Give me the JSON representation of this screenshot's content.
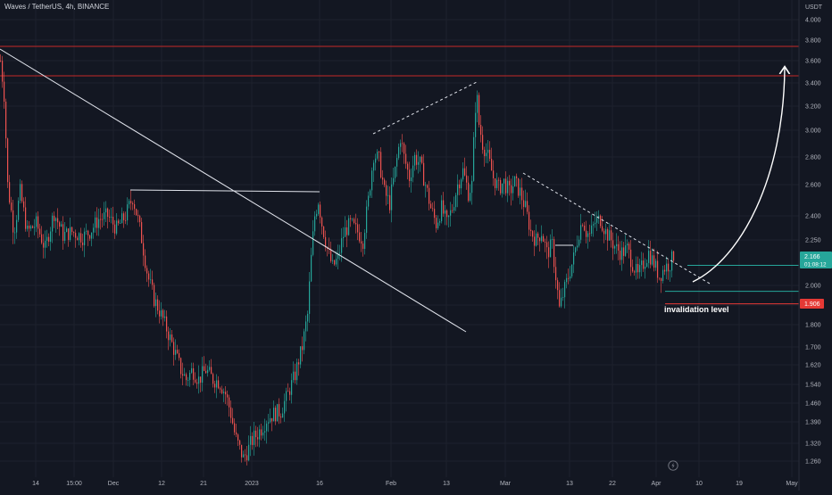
{
  "header": {
    "symbol_line": "Waves / TetherUS, 4h, BINANCE",
    "currency": "USDT"
  },
  "chart_data": {
    "type": "candlestick",
    "title": "Waves / TetherUS, 4h, BINANCE",
    "ylabel": "USDT",
    "ylim": [
      1.22,
      4.1
    ],
    "y_ticks": [
      "4.000",
      "3.800",
      "3.600",
      "3.400",
      "3.200",
      "3.000",
      "2.800",
      "2.600",
      "2.400",
      "2.250",
      "2.000",
      "1.900",
      "1.800",
      "1.700",
      "1.620",
      "1.540",
      "1.460",
      "1.390",
      "1.320",
      "1.260"
    ],
    "x_ticks": [
      "14",
      "15:00",
      "Dec",
      "12",
      "21",
      "2023",
      "16",
      "Feb",
      "13",
      "Mar",
      "13",
      "22",
      "Apr",
      "10",
      "19",
      "May"
    ],
    "grid": true,
    "current_price": {
      "value": "2.166",
      "countdown": "01:08:12"
    },
    "invalidation": {
      "value": "1.906",
      "label": "invalidation level"
    },
    "horizontal_levels": [
      3.74,
      3.47,
      2.11,
      1.97,
      1.906
    ],
    "price_path": [
      [
        0,
        3.6
      ],
      [
        4,
        3.3
      ],
      [
        8,
        2.6
      ],
      [
        15,
        2.3
      ],
      [
        22,
        2.55
      ],
      [
        30,
        2.3
      ],
      [
        40,
        2.35
      ],
      [
        50,
        2.2
      ],
      [
        60,
        2.42
      ],
      [
        70,
        2.28
      ],
      [
        80,
        2.3
      ],
      [
        92,
        2.27
      ],
      [
        100,
        2.3
      ],
      [
        110,
        2.38
      ],
      [
        120,
        2.4
      ],
      [
        130,
        2.32
      ],
      [
        140,
        2.4
      ],
      [
        148,
        2.52
      ],
      [
        155,
        2.35
      ],
      [
        160,
        2.2
      ],
      [
        165,
        2.05
      ],
      [
        172,
        1.93
      ],
      [
        180,
        1.85
      ],
      [
        188,
        1.76
      ],
      [
        195,
        1.68
      ],
      [
        202,
        1.6
      ],
      [
        208,
        1.56
      ],
      [
        215,
        1.6
      ],
      [
        222,
        1.56
      ],
      [
        230,
        1.6
      ],
      [
        238,
        1.56
      ],
      [
        245,
        1.55
      ],
      [
        252,
        1.5
      ],
      [
        258,
        1.42
      ],
      [
        263,
        1.34
      ],
      [
        268,
        1.3
      ],
      [
        272,
        1.27
      ],
      [
        276,
        1.29
      ],
      [
        282,
        1.33
      ],
      [
        290,
        1.36
      ],
      [
        298,
        1.4
      ],
      [
        306,
        1.42
      ],
      [
        314,
        1.43
      ],
      [
        322,
        1.5
      ],
      [
        330,
        1.58
      ],
      [
        338,
        1.7
      ],
      [
        344,
        1.85
      ],
      [
        348,
        2.15
      ],
      [
        352,
        2.4
      ],
      [
        356,
        2.5
      ],
      [
        360,
        2.35
      ],
      [
        366,
        2.2
      ],
      [
        372,
        2.1
      ],
      [
        378,
        2.15
      ],
      [
        385,
        2.3
      ],
      [
        392,
        2.35
      ],
      [
        400,
        2.3
      ],
      [
        406,
        2.25
      ],
      [
        412,
        2.5
      ],
      [
        418,
        2.82
      ],
      [
        424,
        2.78
      ],
      [
        430,
        2.55
      ],
      [
        436,
        2.48
      ],
      [
        442,
        2.7
      ],
      [
        448,
        2.95
      ],
      [
        452,
        2.8
      ],
      [
        458,
        2.65
      ],
      [
        464,
        2.8
      ],
      [
        470,
        2.75
      ],
      [
        476,
        2.6
      ],
      [
        482,
        2.45
      ],
      [
        488,
        2.35
      ],
      [
        494,
        2.45
      ],
      [
        500,
        2.35
      ],
      [
        506,
        2.45
      ],
      [
        512,
        2.6
      ],
      [
        518,
        2.7
      ],
      [
        524,
        2.55
      ],
      [
        528,
        2.6
      ],
      [
        533,
        3.35
      ],
      [
        536,
        3.05
      ],
      [
        540,
        2.9
      ],
      [
        546,
        2.8
      ],
      [
        552,
        2.65
      ],
      [
        558,
        2.58
      ],
      [
        564,
        2.62
      ],
      [
        570,
        2.55
      ],
      [
        576,
        2.62
      ],
      [
        582,
        2.55
      ],
      [
        588,
        2.45
      ],
      [
        594,
        2.3
      ],
      [
        600,
        2.25
      ],
      [
        606,
        2.3
      ],
      [
        612,
        2.18
      ],
      [
        618,
        2.22
      ],
      [
        622,
        2.05
      ],
      [
        626,
        1.88
      ],
      [
        630,
        1.95
      ],
      [
        636,
        2.05
      ],
      [
        642,
        2.15
      ],
      [
        648,
        2.3
      ],
      [
        652,
        2.38
      ],
      [
        656,
        2.3
      ],
      [
        660,
        2.28
      ],
      [
        666,
        2.36
      ],
      [
        672,
        2.38
      ],
      [
        678,
        2.3
      ],
      [
        684,
        2.25
      ],
      [
        690,
        2.2
      ],
      [
        696,
        2.18
      ],
      [
        702,
        2.2
      ],
      [
        708,
        2.12
      ],
      [
        714,
        2.05
      ],
      [
        720,
        2.12
      ],
      [
        726,
        2.18
      ],
      [
        732,
        2.12
      ],
      [
        738,
        2.05
      ],
      [
        744,
        2.1
      ],
      [
        750,
        2.12
      ],
      [
        754,
        2.166
      ]
    ]
  }
}
